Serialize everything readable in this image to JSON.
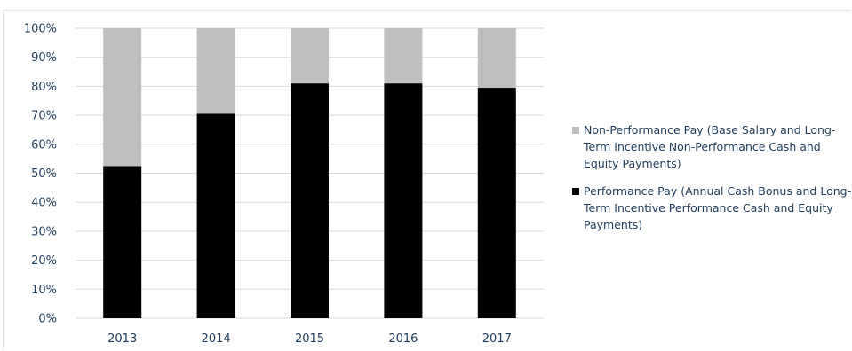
{
  "chart_data": {
    "type": "bar",
    "stacked": true,
    "categories": [
      "2013",
      "2014",
      "2015",
      "2016",
      "2017"
    ],
    "series": [
      {
        "name": "Performance Pay (Annual Cash Bonus and Long-Term Incentive Performance Cash and Equity Payments)",
        "values": [
          52.5,
          70.5,
          81,
          81,
          79.5
        ],
        "color": "#000000"
      },
      {
        "name": "Non-Performance Pay (Base Salary and Long-Term Incentive Non-Performance Cash and Equity Payments)",
        "values": [
          47.5,
          29.5,
          19,
          19,
          20.5
        ],
        "color": "#bfbfbf"
      }
    ],
    "ylim": [
      0,
      100
    ],
    "yticks": [
      "0%",
      "10%",
      "20%",
      "30%",
      "40%",
      "50%",
      "60%",
      "70%",
      "80%",
      "90%",
      "100%"
    ],
    "grid": true,
    "legend_position": "right"
  },
  "legend": {
    "items": [
      {
        "label": "Non-Performance Pay (Base Salary and Long-Term Incentive Non-Performance Cash and Equity Payments)",
        "color": "#bfbfbf"
      },
      {
        "label": "Performance Pay (Annual Cash Bonus and Long-Term Incentive Performance Cash and Equity Payments)",
        "color": "#000000"
      }
    ]
  }
}
